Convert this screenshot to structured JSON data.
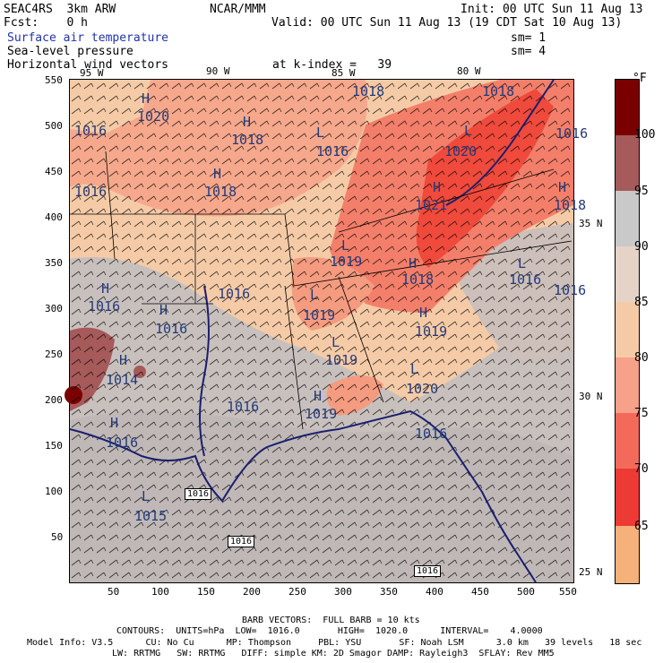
{
  "header": {
    "model": "SEAC4RS  3km ARW",
    "org": "NCAR/MMM",
    "init": "Init: 00 UTC Sun 11 Aug 13",
    "fcst": "Fcst:    0 h",
    "valid": "Valid: 00 UTC Sun 11 Aug 13 (19 CDT Sat 10 Aug 13)",
    "field1": "Surface air temperature",
    "field1_sm": "sm= 1",
    "field2": "Sea-level pressure",
    "field2_sm": "sm= 4",
    "field3": "Horizontal wind vectors",
    "k_index": "at k-index =   39"
  },
  "axes": {
    "x_ticks": [
      "50",
      "100",
      "150",
      "200",
      "250",
      "300",
      "350",
      "400",
      "450",
      "500",
      "550"
    ],
    "y_ticks": [
      "550",
      "500",
      "450",
      "400",
      "350",
      "300",
      "250",
      "200",
      "150",
      "100",
      "50"
    ],
    "lon_labels": [
      "95 W",
      "90 W",
      "85 W",
      "80 W"
    ],
    "lat_labels": [
      "35 N",
      "30 N",
      "25 N"
    ]
  },
  "colorbar": {
    "unit": "°F",
    "labels": [
      "100",
      "95",
      "90",
      "85",
      "80",
      "75",
      "70",
      "65"
    ],
    "colors": [
      "#7a0000",
      "#a65a5a",
      "#c9c9c9",
      "#e6d3c8",
      "#f5cba7",
      "#f7a08a",
      "#f46a5a",
      "#ec3a34",
      "#f6b079"
    ]
  },
  "isobars": {
    "labels": [
      "1020",
      "1018",
      "1018",
      "1016",
      "1018",
      "1020",
      "1018",
      "1016",
      "1021",
      "1018",
      "1016",
      "1019",
      "1018",
      "1016",
      "1016",
      "1019",
      "1019",
      "1016",
      "1014",
      "1019",
      "1020",
      "1016",
      "1016",
      "1019",
      "1016",
      "1015",
      "1016",
      "1016",
      "1016"
    ],
    "systems": [
      "H",
      "H",
      "L",
      "H",
      "L",
      "H",
      "H",
      "L",
      "H",
      "H",
      "L",
      "L",
      "H",
      "L",
      "H",
      "H",
      "L",
      "H",
      "H",
      "L"
    ]
  },
  "road_labels": [
    "1016",
    "1016",
    "1016"
  ],
  "footer": {
    "line1": "BARB VECTORS:  FULL BARB = 10 kts",
    "line2": "CONTOURS:  UNITS=hPa  LOW=  1016.0       HIGH=  1020.0      INTERVAL=    4.0000",
    "line3": "Model Info: V3.5      CU: No Cu      MP: Thompson     PBL: YSU       SF: Noah LSM      3.0 km   39 levels   18 sec",
    "line4": "LW: RRTMG   SW: RRTMG   DIFF: simple KM: 2D Smagor DAMP: Rayleigh3  SFLAY: Rev MM5"
  }
}
